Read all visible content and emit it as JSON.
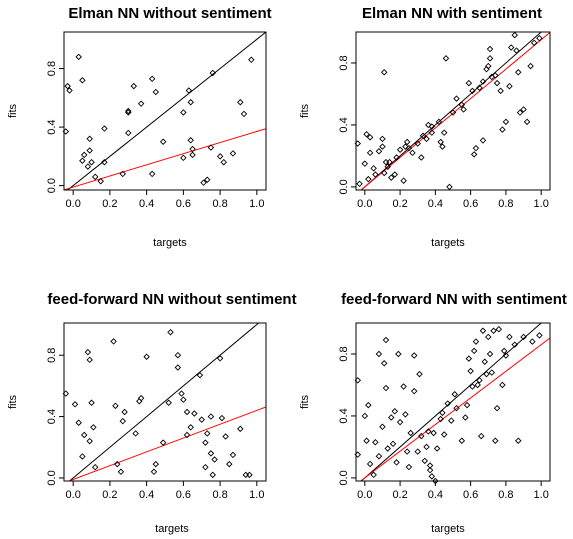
{
  "colors": {
    "fit_line": "#000000",
    "reference_line": "#ff0000",
    "points": "#000000"
  },
  "chart_data": [
    {
      "type": "scatter",
      "title": "Elman NN without sentiment",
      "xlabel": "targets",
      "ylabel": "fits",
      "xlim": [
        -0.05,
        1.05
      ],
      "ylim": [
        -0.03,
        1.05
      ],
      "xticks": [
        0.0,
        0.2,
        0.4,
        0.6,
        0.8,
        1.0
      ],
      "xtick_labels": [
        "0.0",
        "0.2",
        "0.4",
        "0.6",
        "0.8",
        "1.0"
      ],
      "yticks": [
        0.0,
        0.4,
        0.8
      ],
      "ytick_labels": [
        "0.0",
        "0.4",
        "0.8"
      ],
      "grid": false,
      "points": [
        [
          -0.03,
          0.68
        ],
        [
          -0.02,
          0.65
        ],
        [
          -0.04,
          0.37
        ],
        [
          0.03,
          0.88
        ],
        [
          0.05,
          0.72
        ],
        [
          0.05,
          0.17
        ],
        [
          0.06,
          0.21
        ],
        [
          0.08,
          0.13
        ],
        [
          0.09,
          0.32
        ],
        [
          0.09,
          0.24
        ],
        [
          0.1,
          0.16
        ],
        [
          0.12,
          0.06
        ],
        [
          0.17,
          0.16
        ],
        [
          0.15,
          0.03
        ],
        [
          0.17,
          0.39
        ],
        [
          0.27,
          0.08
        ],
        [
          0.3,
          0.51
        ],
        [
          0.3,
          0.5
        ],
        [
          0.3,
          0.36
        ],
        [
          0.33,
          0.68
        ],
        [
          0.37,
          0.56
        ],
        [
          0.43,
          0.73
        ],
        [
          0.45,
          0.64
        ],
        [
          0.43,
          0.08
        ],
        [
          0.49,
          0.3
        ],
        [
          0.6,
          0.5
        ],
        [
          0.63,
          0.65
        ],
        [
          0.64,
          0.57
        ],
        [
          0.64,
          0.31
        ],
        [
          0.65,
          0.25
        ],
        [
          0.65,
          0.21
        ],
        [
          0.6,
          0.19
        ],
        [
          0.71,
          0.02
        ],
        [
          0.73,
          0.04
        ],
        [
          0.75,
          0.26
        ],
        [
          0.76,
          0.77
        ],
        [
          0.8,
          0.2
        ],
        [
          0.82,
          0.16
        ],
        [
          0.87,
          0.22
        ],
        [
          0.91,
          0.57
        ],
        [
          0.93,
          0.49
        ],
        [
          0.97,
          0.86
        ]
      ],
      "lines": [
        {
          "color": "#000000",
          "slope": 1.0,
          "intercept": 0.0
        },
        {
          "color": "#ff0000",
          "slope": 0.38,
          "intercept": -0.01
        }
      ]
    },
    {
      "type": "scatter",
      "title": "Elman NN with sentiment",
      "xlabel": "targets",
      "ylabel": "fits",
      "xlim": [
        -0.05,
        1.05
      ],
      "ylim": [
        -0.02,
        1.0
      ],
      "xticks": [
        0.0,
        0.2,
        0.4,
        0.6,
        0.8,
        1.0
      ],
      "xtick_labels": [
        "0.0",
        "0.2",
        "0.4",
        "0.6",
        "0.8",
        "1.0"
      ],
      "yticks": [
        0.0,
        0.4,
        0.8
      ],
      "ytick_labels": [
        "0.0",
        "0.4",
        "0.8"
      ],
      "grid": false,
      "points": [
        [
          -0.04,
          0.28
        ],
        [
          -0.03,
          0.02
        ],
        [
          0.0,
          0.15
        ],
        [
          0.01,
          0.34
        ],
        [
          0.02,
          0.05
        ],
        [
          0.03,
          0.32
        ],
        [
          0.03,
          0.22
        ],
        [
          0.05,
          0.12
        ],
        [
          0.06,
          0.08
        ],
        [
          0.08,
          0.23
        ],
        [
          0.1,
          0.31
        ],
        [
          0.1,
          0.26
        ],
        [
          0.11,
          0.09
        ],
        [
          0.12,
          0.16
        ],
        [
          0.13,
          0.13
        ],
        [
          0.14,
          0.16
        ],
        [
          0.15,
          0.06
        ],
        [
          0.17,
          0.08
        ],
        [
          0.18,
          0.19
        ],
        [
          0.2,
          0.24
        ],
        [
          0.22,
          0.04
        ],
        [
          0.23,
          0.26
        ],
        [
          0.24,
          0.29
        ],
        [
          0.25,
          0.25
        ],
        [
          0.27,
          0.22
        ],
        [
          0.3,
          0.28
        ],
        [
          0.32,
          0.19
        ],
        [
          0.33,
          0.33
        ],
        [
          0.35,
          0.31
        ],
        [
          0.36,
          0.4
        ],
        [
          0.38,
          0.35
        ],
        [
          0.38,
          0.39
        ],
        [
          0.42,
          0.42
        ],
        [
          0.43,
          0.29
        ],
        [
          0.44,
          0.26
        ],
        [
          0.45,
          0.35
        ],
        [
          0.46,
          0.83
        ],
        [
          0.48,
          0.0
        ],
        [
          0.5,
          0.48
        ],
        [
          0.52,
          0.57
        ],
        [
          0.55,
          0.53
        ],
        [
          0.56,
          0.5
        ],
        [
          0.59,
          0.67
        ],
        [
          0.61,
          0.62
        ],
        [
          0.62,
          0.21
        ],
        [
          0.63,
          0.25
        ],
        [
          0.65,
          0.64
        ],
        [
          0.67,
          0.68
        ],
        [
          0.67,
          0.3
        ],
        [
          0.69,
          0.76
        ],
        [
          0.7,
          0.78
        ],
        [
          0.71,
          0.83
        ],
        [
          0.71,
          0.89
        ],
        [
          0.72,
          0.71
        ],
        [
          0.74,
          0.72
        ],
        [
          0.75,
          0.67
        ],
        [
          0.77,
          0.62
        ],
        [
          0.78,
          0.37
        ],
        [
          0.8,
          0.42
        ],
        [
          0.82,
          0.65
        ],
        [
          0.83,
          0.9
        ],
        [
          0.85,
          0.98
        ],
        [
          0.86,
          0.88
        ],
        [
          0.87,
          0.74
        ],
        [
          0.88,
          0.48
        ],
        [
          0.9,
          0.5
        ],
        [
          0.92,
          0.42
        ],
        [
          0.94,
          0.78
        ],
        [
          0.96,
          0.93
        ],
        [
          0.99,
          0.96
        ],
        [
          0.11,
          0.74
        ]
      ],
      "lines": [
        {
          "color": "#000000",
          "slope": 1.0,
          "intercept": 0.0
        },
        {
          "color": "#ff0000",
          "slope": 0.95,
          "intercept": 0.0
        }
      ]
    },
    {
      "type": "scatter",
      "title": "feed-forward NN without sentiment",
      "xlabel": "targets",
      "ylabel": "fits",
      "xlim": [
        -0.05,
        1.05
      ],
      "ylim": [
        -0.02,
        1.01
      ],
      "xticks": [
        0.0,
        0.2,
        0.4,
        0.6,
        0.8,
        1.0
      ],
      "xtick_labels": [
        "0.0",
        "0.2",
        "0.4",
        "0.6",
        "0.8",
        "1.0"
      ],
      "yticks": [
        0.0,
        0.4,
        0.8
      ],
      "ytick_labels": [
        "0.0",
        "0.4",
        "0.8"
      ],
      "grid": false,
      "points": [
        [
          -0.04,
          0.55
        ],
        [
          0.01,
          0.48
        ],
        [
          0.03,
          0.36
        ],
        [
          0.05,
          0.14
        ],
        [
          0.06,
          0.28
        ],
        [
          0.08,
          0.82
        ],
        [
          0.09,
          0.77
        ],
        [
          0.09,
          0.24
        ],
        [
          0.1,
          0.49
        ],
        [
          0.11,
          0.33
        ],
        [
          0.12,
          0.07
        ],
        [
          0.22,
          0.89
        ],
        [
          0.23,
          0.47
        ],
        [
          0.24,
          0.09
        ],
        [
          0.26,
          0.04
        ],
        [
          0.27,
          0.37
        ],
        [
          0.28,
          0.43
        ],
        [
          0.34,
          0.29
        ],
        [
          0.36,
          0.5
        ],
        [
          0.37,
          0.52
        ],
        [
          0.4,
          0.79
        ],
        [
          0.44,
          0.04
        ],
        [
          0.45,
          0.09
        ],
        [
          0.49,
          0.23
        ],
        [
          0.52,
          0.49
        ],
        [
          0.53,
          0.95
        ],
        [
          0.57,
          0.8
        ],
        [
          0.57,
          0.72
        ],
        [
          0.59,
          0.55
        ],
        [
          0.6,
          0.51
        ],
        [
          0.62,
          0.43
        ],
        [
          0.62,
          0.28
        ],
        [
          0.64,
          0.33
        ],
        [
          0.66,
          0.42
        ],
        [
          0.69,
          0.67
        ],
        [
          0.7,
          0.38
        ],
        [
          0.72,
          0.07
        ],
        [
          0.72,
          0.23
        ],
        [
          0.73,
          0.29
        ],
        [
          0.75,
          0.4
        ],
        [
          0.75,
          0.16
        ],
        [
          0.76,
          0.02
        ],
        [
          0.77,
          0.12
        ],
        [
          0.8,
          0.78
        ],
        [
          0.81,
          0.39
        ],
        [
          0.83,
          0.27
        ],
        [
          0.85,
          0.09
        ],
        [
          0.87,
          0.15
        ],
        [
          0.91,
          0.32
        ],
        [
          0.94,
          0.02
        ],
        [
          0.96,
          0.02
        ]
      ],
      "lines": [
        {
          "color": "#000000",
          "slope": 1.0,
          "intercept": 0.0
        },
        {
          "color": "#ff0000",
          "slope": 0.45,
          "intercept": -0.01
        }
      ]
    },
    {
      "type": "scatter",
      "title": "feed-forward NN with sentiment",
      "xlabel": "targets",
      "ylabel": "fits",
      "xlim": [
        -0.05,
        1.05
      ],
      "ylim": [
        -0.02,
        1.0
      ],
      "xticks": [
        0.0,
        0.2,
        0.4,
        0.6,
        0.8,
        1.0
      ],
      "xtick_labels": [
        "0.0",
        "0.2",
        "0.4",
        "0.6",
        "0.8",
        "1.0"
      ],
      "yticks": [
        0.0,
        0.4,
        0.8
      ],
      "ytick_labels": [
        "0.0",
        "0.4",
        "0.8"
      ],
      "grid": false,
      "points": [
        [
          -0.04,
          0.63
        ],
        [
          -0.04,
          0.15
        ],
        [
          0.0,
          0.4
        ],
        [
          0.01,
          0.24
        ],
        [
          0.02,
          0.47
        ],
        [
          0.03,
          0.09
        ],
        [
          0.05,
          0.02
        ],
        [
          0.06,
          0.23
        ],
        [
          0.08,
          0.14
        ],
        [
          0.1,
          0.33
        ],
        [
          0.11,
          0.74
        ],
        [
          0.12,
          0.58
        ],
        [
          0.12,
          0.89
        ],
        [
          0.13,
          0.19
        ],
        [
          0.15,
          0.39
        ],
        [
          0.16,
          0.22
        ],
        [
          0.17,
          0.43
        ],
        [
          0.18,
          0.1
        ],
        [
          0.19,
          0.8
        ],
        [
          0.2,
          0.36
        ],
        [
          0.22,
          0.59
        ],
        [
          0.23,
          0.41
        ],
        [
          0.24,
          0.17
        ],
        [
          0.25,
          0.07
        ],
        [
          0.26,
          0.29
        ],
        [
          0.28,
          0.56
        ],
        [
          0.3,
          0.17
        ],
        [
          0.31,
          0.67
        ],
        [
          0.32,
          0.27
        ],
        [
          0.34,
          0.11
        ],
        [
          0.35,
          0.2
        ],
        [
          0.36,
          0.3
        ],
        [
          0.37,
          0.08
        ],
        [
          0.37,
          0.05
        ],
        [
          0.38,
          0.01
        ],
        [
          0.39,
          0.29
        ],
        [
          0.41,
          0.19
        ],
        [
          0.43,
          0.38
        ],
        [
          0.44,
          0.42
        ],
        [
          0.45,
          0.28
        ],
        [
          0.47,
          0.48
        ],
        [
          0.49,
          0.37
        ],
        [
          0.51,
          0.54
        ],
        [
          0.52,
          0.45
        ],
        [
          0.55,
          0.24
        ],
        [
          0.57,
          0.39
        ],
        [
          0.58,
          0.47
        ],
        [
          0.59,
          0.77
        ],
        [
          0.6,
          0.69
        ],
        [
          0.61,
          0.59
        ],
        [
          0.62,
          0.82
        ],
        [
          0.63,
          0.88
        ],
        [
          0.64,
          0.6
        ],
        [
          0.65,
          0.63
        ],
        [
          0.66,
          0.27
        ],
        [
          0.67,
          0.95
        ],
        [
          0.68,
          0.75
        ],
        [
          0.69,
          0.67
        ],
        [
          0.7,
          0.91
        ],
        [
          0.71,
          0.8
        ],
        [
          0.72,
          0.68
        ],
        [
          0.73,
          0.95
        ],
        [
          0.74,
          0.24
        ],
        [
          0.75,
          0.45
        ],
        [
          0.76,
          0.96
        ],
        [
          0.78,
          0.6
        ],
        [
          0.79,
          0.82
        ],
        [
          0.8,
          0.79
        ],
        [
          0.82,
          0.91
        ],
        [
          0.85,
          0.86
        ],
        [
          0.87,
          0.24
        ],
        [
          0.9,
          0.91
        ],
        [
          0.95,
          0.88
        ],
        [
          0.99,
          0.92
        ],
        [
          0.28,
          0.79
        ],
        [
          0.08,
          0.8
        ],
        [
          0.4,
          -0.02
        ]
      ],
      "lines": [
        {
          "color": "#000000",
          "slope": 1.0,
          "intercept": 0.0
        },
        {
          "color": "#ff0000",
          "slope": 0.86,
          "intercept": 0.0
        }
      ]
    }
  ]
}
